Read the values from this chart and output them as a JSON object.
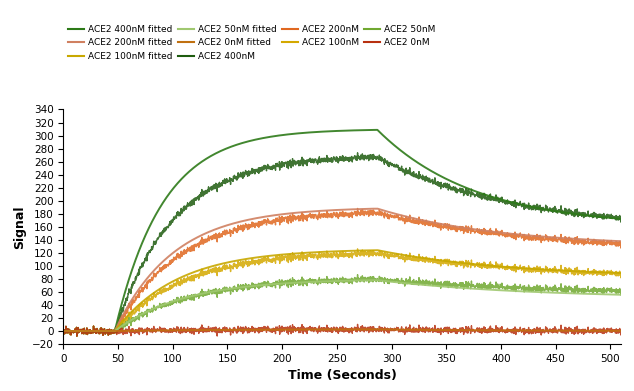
{
  "xlabel": "Time (Seconds)",
  "ylabel": "Signal",
  "xlim": [
    0,
    510
  ],
  "ylim": [
    -20,
    340
  ],
  "yticks": [
    -20,
    0,
    20,
    40,
    60,
    80,
    100,
    120,
    140,
    160,
    180,
    200,
    220,
    240,
    260,
    280,
    300,
    320,
    340
  ],
  "xticks": [
    0,
    50,
    100,
    150,
    200,
    250,
    300,
    350,
    400,
    450,
    500
  ],
  "colors": {
    "ACE2_400nM": "#1e5c0f",
    "ACE2_400nM_fitted": "#2d7a18",
    "ACE2_200nM": "#e06820",
    "ACE2_200nM_fitted": "#d08060",
    "ACE2_100nM": "#d4a800",
    "ACE2_100nM_fitted": "#c8a800",
    "ACE2_50nM": "#70a830",
    "ACE2_50nM_fitted": "#a0c870",
    "ACE2_0nM": "#b83010",
    "ACE2_0nM_fitted": "#c07010"
  },
  "t_start": 47,
  "t_assoc_end": 287,
  "t_end": 510,
  "curves": {
    "ACE2_400nM": {
      "max": 270,
      "ka": 4.5,
      "kd": 1.8,
      "end_val": 155
    },
    "ACE2_200nM": {
      "max": 185,
      "ka": 4.0,
      "kd": 1.5,
      "end_val": 120
    },
    "ACE2_100nM": {
      "max": 122,
      "ka": 3.8,
      "kd": 1.4,
      "end_val": 78
    },
    "ACE2_50nM": {
      "max": 82,
      "ka": 3.5,
      "kd": 1.3,
      "end_val": 55
    },
    "ACE2_0nM": {
      "max": 3,
      "ka": 2.0,
      "kd": 2.0,
      "end_val": 0
    }
  },
  "fitted_curves": {
    "ACE2_400nM_fitted": {
      "max": 310,
      "ka": 5.5,
      "kd": 2.5,
      "end_val": 160
    },
    "ACE2_200nM_fitted": {
      "max": 190,
      "ka": 4.5,
      "kd": 2.0,
      "end_val": 130
    },
    "ACE2_100nM_fitted": {
      "max": 126,
      "ka": 4.2,
      "kd": 1.8,
      "end_val": 82
    },
    "ACE2_50nM_fitted": {
      "max": 80,
      "ka": 3.8,
      "kd": 1.6,
      "end_val": 50
    },
    "ACE2_0nM_fitted": {
      "max": 3,
      "ka": 2.0,
      "kd": 2.0,
      "end_val": 0
    }
  }
}
